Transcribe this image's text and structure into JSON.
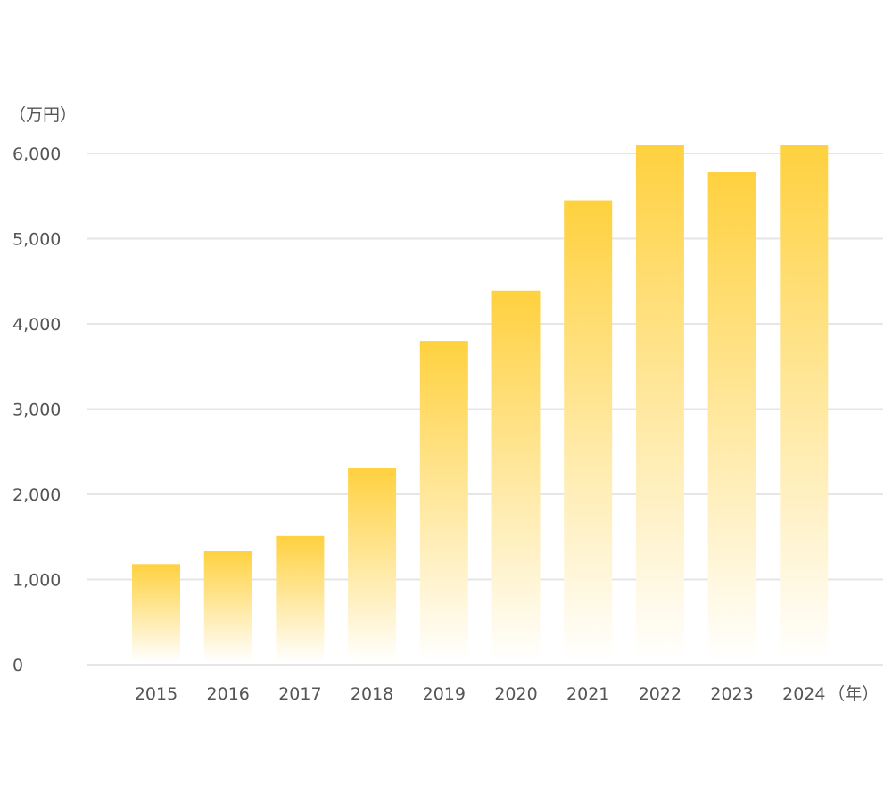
{
  "chart_data": {
    "type": "bar",
    "categories": [
      "2015",
      "2016",
      "2017",
      "2018",
      "2019",
      "2020",
      "2021",
      "2022",
      "2023",
      "2024"
    ],
    "values": [
      1180,
      1340,
      1510,
      2310,
      3800,
      4390,
      5450,
      6100,
      5780,
      6100
    ],
    "y_unit": "（万円）",
    "x_unit": "（年）",
    "ylim": [
      0,
      6000
    ],
    "yticks": [
      0,
      1000,
      2000,
      3000,
      4000,
      5000,
      6000
    ],
    "ytick_labels": [
      "0",
      "1,000",
      "2,000",
      "3,000",
      "4,000",
      "5,000",
      "6,000"
    ],
    "grid": true,
    "colors": {
      "bar_top": "#FFD13F",
      "bar_bottom": "#FFFFFF",
      "grid": "#E6E6E6",
      "text": "#555555"
    }
  }
}
